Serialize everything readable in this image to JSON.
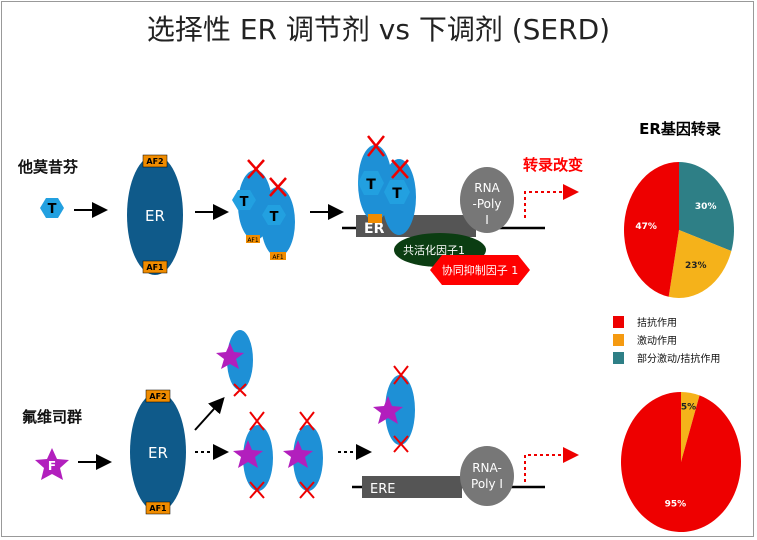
{
  "title": "选择性 ER 调节剂 vs 下调剂 (SERD)",
  "tamoxifen": {
    "label": "他莫昔芬",
    "drug_symbol": "T"
  },
  "fulvestrant": {
    "label": "氟维司群",
    "drug_symbol": "F"
  },
  "receptor": {
    "label": "ER",
    "af2": "AF2",
    "af1": "AF1",
    "af2_short": "A2",
    "af1_short": "AF1"
  },
  "dna": {
    "ere": "ERE",
    "ere_short": "ER"
  },
  "rna_poly_top": [
    "RNA",
    "-Poly",
    "I"
  ],
  "rna_poly_bottom": [
    "RNA-",
    "Poly I"
  ],
  "coactivator": "共活化因子1",
  "corepressor": "协同抑制因子 1",
  "transcription_change": "转录改变",
  "chart_data": [
    {
      "type": "pie",
      "title": "ER基因转录",
      "categories": [
        "部分激动/拮抗作用",
        "激动作用",
        "拮抗作用"
      ],
      "values": [
        30,
        23,
        47
      ],
      "labels": [
        "30%",
        "23%",
        "47%"
      ],
      "colors": [
        "#2e7f86",
        "#f5b21a",
        "#ee0000"
      ]
    },
    {
      "type": "pie",
      "title": "",
      "categories": [
        "激动作用",
        "拮抗作用"
      ],
      "values": [
        5,
        95
      ],
      "labels": [
        "5%",
        "95%"
      ],
      "colors": [
        "#f5b21a",
        "#ee0000"
      ]
    }
  ],
  "legend": [
    {
      "label": "拮抗作用",
      "color": "#ee0000"
    },
    {
      "label": "激动作用",
      "color": "#f59a10"
    },
    {
      "label": "部分激动/拮抗作用",
      "color": "#2e7f86"
    }
  ],
  "colors": {
    "receptor": "#0f5a8a",
    "bound_receptor": "#1e90d6",
    "tamoxifen": "#22a0e0",
    "fulvestrant": "#b21fbd",
    "af_box": "#f08c00",
    "x_mark": "#e00000"
  }
}
